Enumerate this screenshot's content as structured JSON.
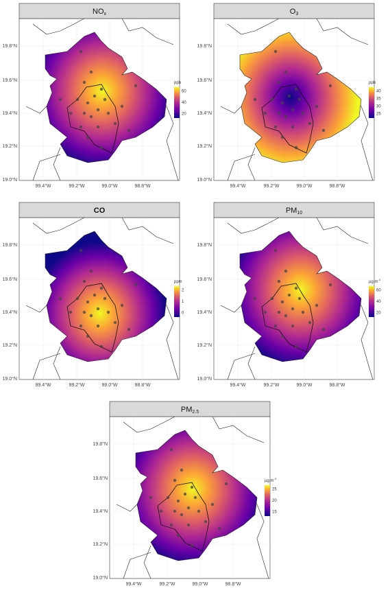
{
  "panels": [
    {
      "title": {
        "text": "NO",
        "sub": "x"
      },
      "legend": {
        "title": {
          "text": "ppb"
        },
        "ticks": [
          "60",
          "40",
          "20"
        ]
      },
      "lat_labels": [
        "19.8°N",
        "19.6°N",
        "19.4°N",
        "19.2°N",
        "19.0°N"
      ],
      "lon_labels": [
        "99.4°W",
        "99.2°W",
        "99.0°W",
        "98.8°W"
      ]
    },
    {
      "title": {
        "text": "O",
        "sub": "3"
      },
      "legend": {
        "title": {
          "text": "ppb"
        },
        "ticks": [
          "40",
          "35",
          "30",
          "25"
        ]
      },
      "lat_labels": [
        "19.8°N",
        "19.6°N",
        "19.4°N",
        "19.2°N",
        "19.0°N"
      ],
      "lon_labels": [
        "99.4°W",
        "99.2°W",
        "99.0°W",
        "98.8°W"
      ]
    },
    {
      "title": {
        "text": "CO"
      },
      "legend": {
        "title": {
          "text": "ppm"
        },
        "ticks": [
          "2",
          "1",
          "0"
        ]
      },
      "lat_labels": [
        "19.8°N",
        "19.6°N",
        "19.4°N",
        "19.2°N",
        "19.0°N"
      ],
      "lon_labels": [
        "99.4°W",
        "99.2°W",
        "99.0°W",
        "98.8°W"
      ]
    },
    {
      "title": {
        "text": "PM",
        "sub": "10"
      },
      "legend": {
        "title": {
          "text": "µg m",
          "sup": "-3"
        },
        "ticks": [
          "60",
          "40",
          "20"
        ]
      },
      "lat_labels": [
        "19.8°N",
        "19.6°N",
        "19.4°N",
        "19.2°N",
        "19.0°N"
      ],
      "lon_labels": [
        "99.4°W",
        "99.2°W",
        "99.0°W",
        "98.8°W"
      ]
    },
    {
      "title": {
        "text": "PM",
        "sub": "2.5"
      },
      "legend": {
        "title": {
          "text": "µg m",
          "sup": "-3"
        },
        "ticks": [
          "25",
          "20",
          "15"
        ]
      },
      "lat_labels": [
        "19.8°N",
        "19.6°N",
        "19.4°N",
        "19.2°N",
        "19.0°N"
      ],
      "lon_labels": [
        "99.4°W",
        "99.2°W",
        "99.0°W",
        "98.8°W"
      ]
    }
  ]
}
